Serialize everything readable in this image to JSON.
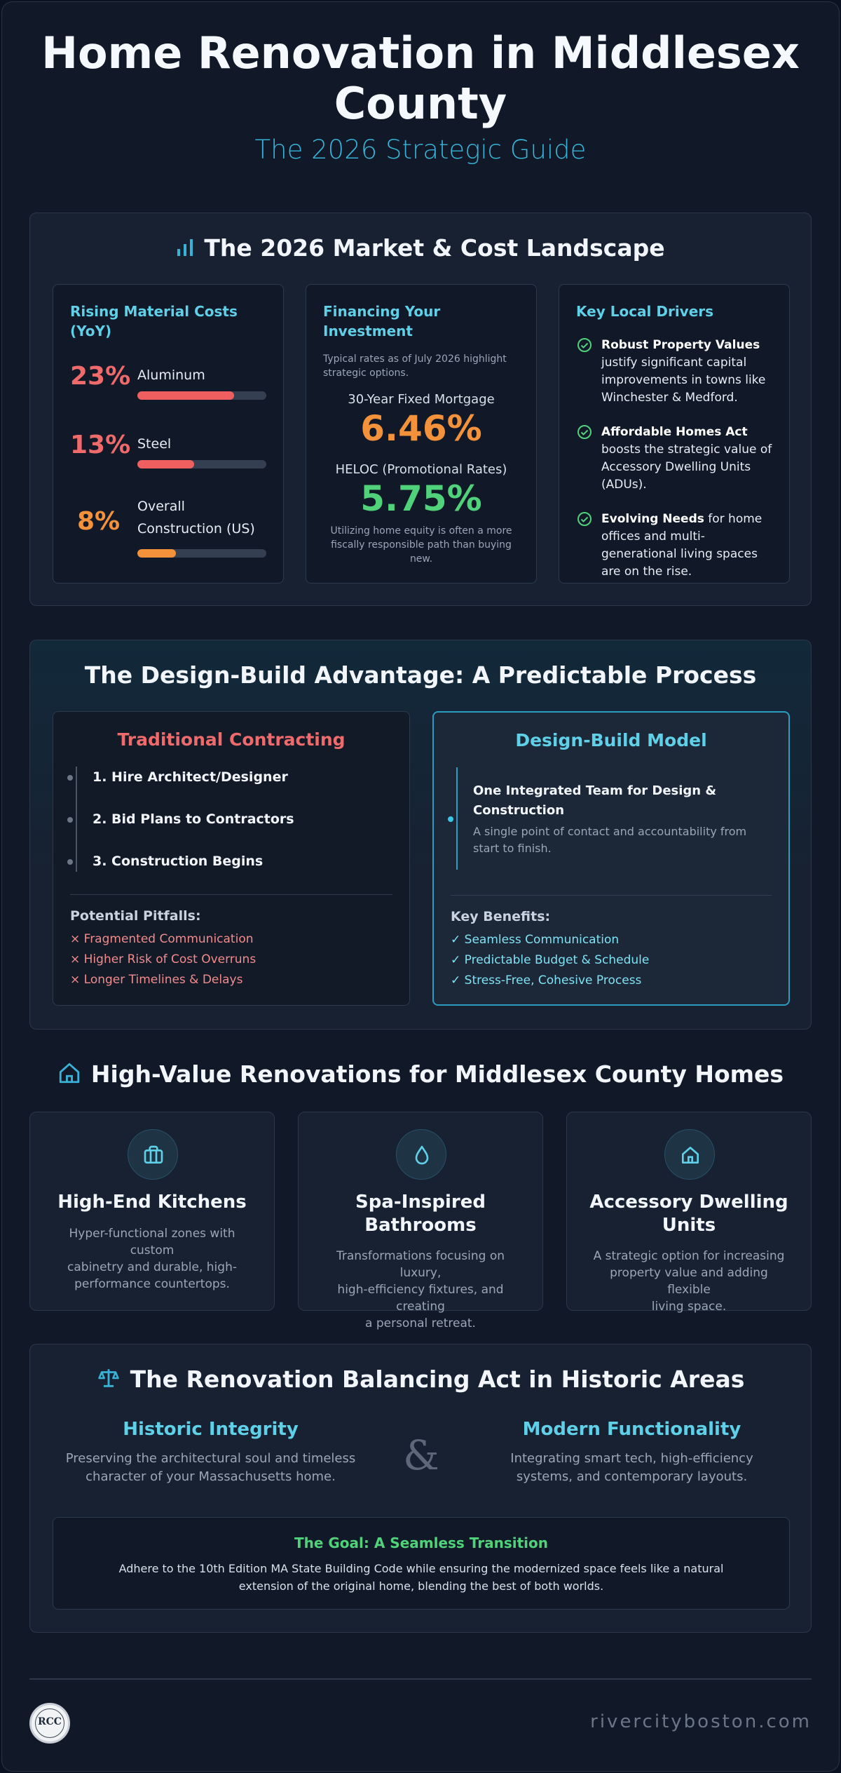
{
  "hero": {
    "title_line1": "Home Renovation in Middlesex",
    "title_line2": "County",
    "subtitle": "The 2026 Strategic Guide"
  },
  "market": {
    "title": "The 2026 Market & Cost Landscape",
    "icon": "bar-chart-icon",
    "materials": {
      "heading_line1": "Rising Material Costs",
      "heading_line2": "(YoY)",
      "items": [
        {
          "pct": "23%",
          "label": "Aluminum",
          "level": 0.75,
          "color": "#ef5f5f"
        },
        {
          "pct": "13%",
          "label": "Steel",
          "level": 0.44,
          "color": "#ef5f5f"
        },
        {
          "pct": "8%",
          "label_line1": "Overall",
          "label_line2": "Construction (US)",
          "level": 0.3,
          "color": "#f3923a"
        }
      ]
    },
    "financing": {
      "heading_line1": "Financing Your",
      "heading_line2": "Investment",
      "note": "Typical rates as of July 2026 highlight strategic options.",
      "rate1_label": "30-Year Fixed Mortgage",
      "rate1_value": "6.46%",
      "rate2_label": "HELOC (Promotional Rates)",
      "rate2_value": "5.75%",
      "footer": "Utilizing home equity is often a more fiscally responsible path than buying new."
    },
    "drivers": {
      "heading": "Key Local Drivers",
      "items": [
        {
          "bold": "Robust Property Values",
          "rest": " justify significant capital improvements in towns like Winchester & Medford."
        },
        {
          "bold": "Affordable Homes Act",
          "rest": " boosts the strategic value of Accessory Dwelling Units (ADUs)."
        },
        {
          "bold": "Evolving Needs",
          "rest": " for home offices and multi-generational living spaces are on the rise."
        }
      ]
    }
  },
  "design_build": {
    "title": "The Design-Build Advantage: A Predictable Process",
    "traditional": {
      "heading": "Traditional Contracting",
      "steps": [
        "1. Hire Architect/Designer",
        "2. Bid Plans to Contractors",
        "3. Construction Begins"
      ],
      "pitfalls_heading": "Potential Pitfalls:",
      "pitfalls": [
        "× Fragmented Communication",
        "× Higher Risk of Cost Overruns",
        "× Longer Timelines & Delays"
      ]
    },
    "model": {
      "heading": "Design-Build Model",
      "team_line1": "One Integrated Team for Design &",
      "team_line2": "Construction",
      "team_desc_line1": "A single point of contact and accountability from",
      "team_desc_line2": "start to finish.",
      "benefits_heading": "Key Benefits:",
      "benefits": [
        "✓ Seamless Communication",
        "✓ Predictable Budget & Schedule",
        "✓ Stress-Free, Cohesive Process"
      ]
    }
  },
  "renovations": {
    "title": "High-Value Renovations for Middlesex County Homes",
    "icon": "house-icon",
    "cards": [
      {
        "icon": "briefcase-icon",
        "title_line1": "High-End Kitchens",
        "title_line2": "",
        "desc_line1": "Hyper-functional zones with custom",
        "desc_line2": "cabinetry and durable, high-",
        "desc_line3": "performance countertops."
      },
      {
        "icon": "water-drop-icon",
        "title_line1": "Spa-Inspired",
        "title_line2": "Bathrooms",
        "desc_line1": "Transformations focusing on luxury,",
        "desc_line2": "high-efficiency fixtures, and creating",
        "desc_line3": "a personal retreat."
      },
      {
        "icon": "house-icon",
        "title_line1": "Accessory Dwelling",
        "title_line2": "Units",
        "desc_line1": "A strategic option for increasing",
        "desc_line2": "property value and adding flexible",
        "desc_line3": "living space."
      }
    ]
  },
  "balance": {
    "title": "The Renovation Balancing Act in Historic Areas",
    "icon": "scales-icon",
    "left_heading": "Historic Integrity",
    "left_desc_line1": "Preserving the architectural soul and timeless",
    "left_desc_line2": "character of your Massachusetts home.",
    "ampersand": "&",
    "right_heading": "Modern Functionality",
    "right_desc_line1": "Integrating smart tech, high-efficiency",
    "right_desc_line2": "systems, and contemporary layouts.",
    "goal_heading": "The Goal: A Seamless Transition",
    "goal_line1": "Adhere to the 10th Edition MA State Building Code while ensuring the modernized space feels like a natural",
    "goal_line2": "extension of the original home, blending the best of both worlds."
  },
  "footer": {
    "logo_text": "RCC",
    "site": "rivercityboston.com"
  },
  "colors": {
    "accent": "#38b2d6",
    "red": "#ef5f5f",
    "orange": "#f3923a",
    "green": "#4fd27a"
  }
}
